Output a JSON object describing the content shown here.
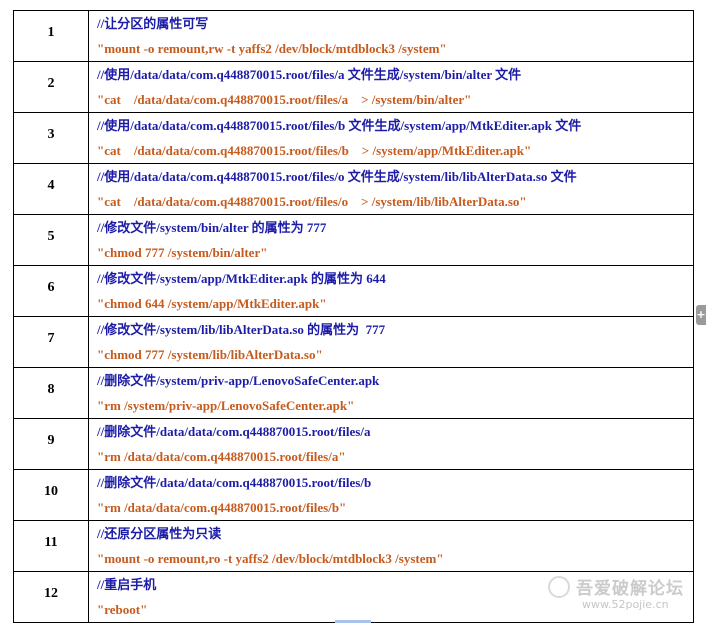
{
  "colors": {
    "comment": "#1c1ca8",
    "command": "#c65b1e",
    "border": "#000000"
  },
  "document": {
    "rows": [
      {
        "number": "1",
        "comment": "//让分区的属性可写",
        "command": "\"mount -o remount,rw -t yaffs2 /dev/block/mtdblock3 /system\""
      },
      {
        "number": "2",
        "comment": "//使用/data/data/com.q448870015.root/files/a 文件生成/system/bin/alter 文件",
        "command": "\"cat    /data/data/com.q448870015.root/files/a    > /system/bin/alter\""
      },
      {
        "number": "3",
        "comment": "//使用/data/data/com.q448870015.root/files/b 文件生成/system/app/MtkEditer.apk 文件",
        "command": "\"cat    /data/data/com.q448870015.root/files/b    > /system/app/MtkEditer.apk\""
      },
      {
        "number": "4",
        "comment": "//使用/data/data/com.q448870015.root/files/o 文件生成/system/lib/libAlterData.so 文件",
        "command": "\"cat    /data/data/com.q448870015.root/files/o    > /system/lib/libAlterData.so\""
      },
      {
        "number": "5",
        "comment": "//修改文件/system/bin/alter 的属性为 777",
        "command": "\"chmod 777 /system/bin/alter\""
      },
      {
        "number": "6",
        "comment": "//修改文件/system/app/MtkEditer.apk 的属性为 644",
        "command": "\"chmod 644 /system/app/MtkEditer.apk\""
      },
      {
        "number": "7",
        "comment": "//修改文件/system/lib/libAlterData.so 的属性为  777",
        "command": "\"chmod 777 /system/lib/libAlterData.so\""
      },
      {
        "number": "8",
        "comment": "//删除文件/system/priv-app/LenovoSafeCenter.apk",
        "command": "\"rm /system/priv-app/LenovoSafeCenter.apk\""
      },
      {
        "number": "9",
        "comment": "//删除文件/data/data/com.q448870015.root/files/a",
        "command": "\"rm /data/data/com.q448870015.root/files/a\""
      },
      {
        "number": "10",
        "comment": "//删除文件/data/data/com.q448870015.root/files/b",
        "command": "\"rm /data/data/com.q448870015.root/files/b\""
      },
      {
        "number": "11",
        "comment": "//还原分区属性为只读",
        "command": "\"mount -o remount,ro -t yaffs2 /dev/block/mtdblock3 /system\""
      },
      {
        "number": "12",
        "comment": "//重启手机",
        "command": "\"reboot\""
      }
    ]
  },
  "watermark": {
    "title": "吾爱破解论坛",
    "url": "www.52pojie.cn"
  },
  "side_tab": {
    "label": "+",
    "icon": "plus-icon"
  }
}
